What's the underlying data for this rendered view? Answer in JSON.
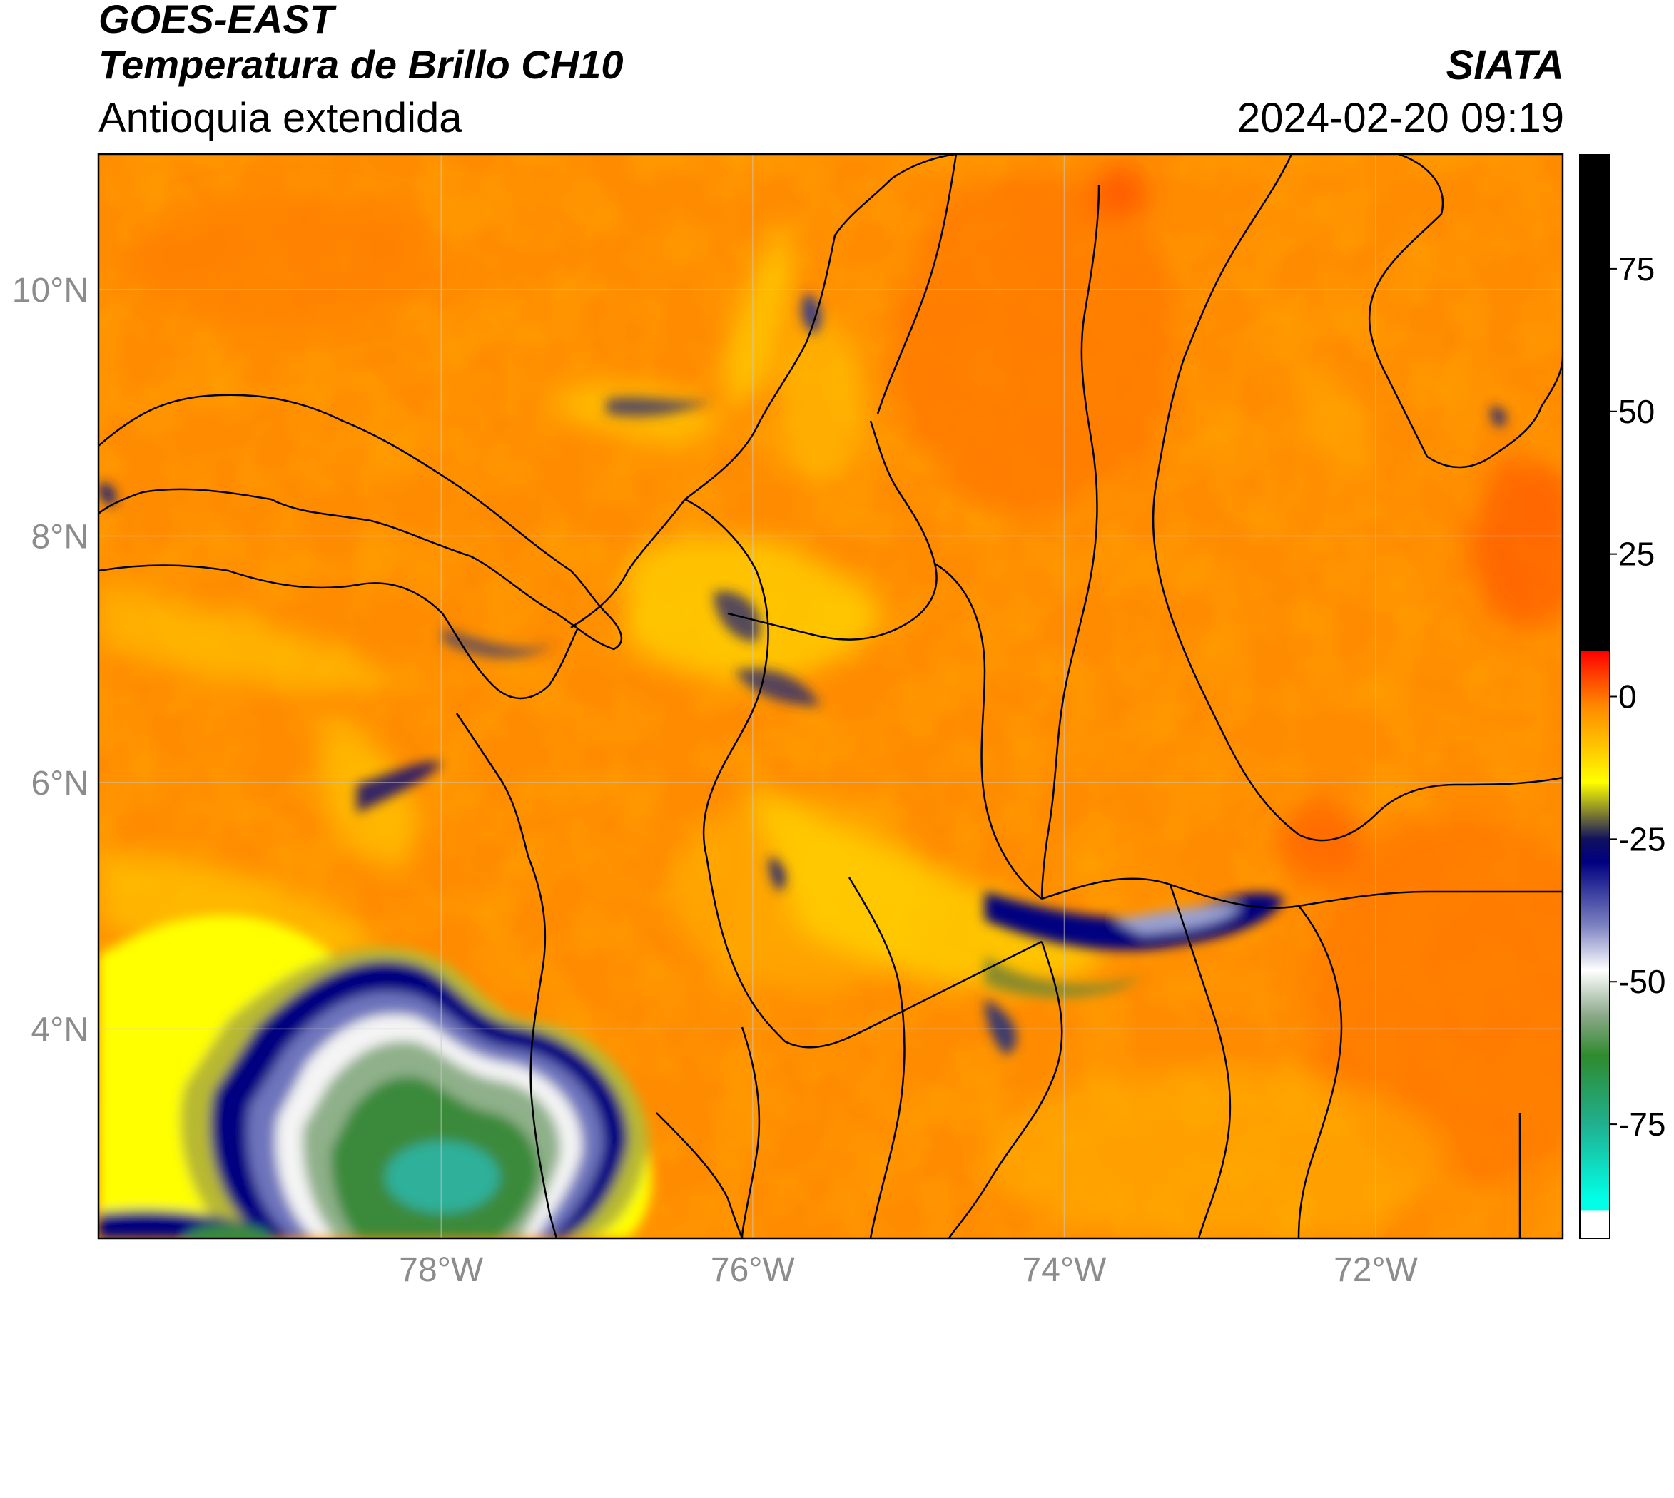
{
  "header": {
    "satellite": "GOES-EAST",
    "product": "Temperatura de Brillo CH10",
    "region": "Antioquia extendida",
    "organization": "SIATA",
    "datetime": "2024-02-20 09:19"
  },
  "map": {
    "lat_ticks": [
      {
        "lat": 10,
        "label": "10°N"
      },
      {
        "lat": 8,
        "label": "8°N"
      },
      {
        "lat": 6,
        "label": "6°N"
      },
      {
        "lat": 4,
        "label": "4°N"
      }
    ],
    "lon_ticks": [
      {
        "lon": -78,
        "label": "78°W"
      },
      {
        "lon": -76,
        "label": "76°W"
      },
      {
        "lon": -74,
        "label": "74°W"
      },
      {
        "lon": -72,
        "label": "72°W"
      }
    ],
    "lon_range": [
      -80.2,
      -70.8
    ],
    "lat_range": [
      2.3,
      11.1
    ],
    "background_color": "#ff8c00"
  },
  "colorbar": {
    "range": [
      -95,
      95
    ],
    "ticks": [
      {
        "value": 75,
        "label": "75"
      },
      {
        "value": 50,
        "label": "50"
      },
      {
        "value": 25,
        "label": "25"
      },
      {
        "value": 0,
        "label": "0"
      },
      {
        "value": -25,
        "label": "-25"
      },
      {
        "value": -50,
        "label": "-50"
      },
      {
        "value": -75,
        "label": "-75"
      }
    ],
    "stops": [
      {
        "value": 95,
        "color": "#000000"
      },
      {
        "value": 8,
        "color": "#000000"
      },
      {
        "value": 7.9,
        "color": "#ff0000"
      },
      {
        "value": 3,
        "color": "#ff4a00"
      },
      {
        "value": -2,
        "color": "#ff8c00"
      },
      {
        "value": -10,
        "color": "#ffd000"
      },
      {
        "value": -15,
        "color": "#ffff00"
      },
      {
        "value": -20,
        "color": "#8a8a2a"
      },
      {
        "value": -25,
        "color": "#101060"
      },
      {
        "value": -29,
        "color": "#000080"
      },
      {
        "value": -40,
        "color": "#7a80c0"
      },
      {
        "value": -48,
        "color": "#ffffff"
      },
      {
        "value": -56,
        "color": "#8aa888"
      },
      {
        "value": -63,
        "color": "#2e8b2e"
      },
      {
        "value": -75,
        "color": "#20b090"
      },
      {
        "value": -88,
        "color": "#00ffe6"
      },
      {
        "value": -90,
        "color": "#00ffe6"
      },
      {
        "value": -90.1,
        "color": "#ffffff"
      },
      {
        "value": -95,
        "color": "#ffffff"
      }
    ]
  }
}
